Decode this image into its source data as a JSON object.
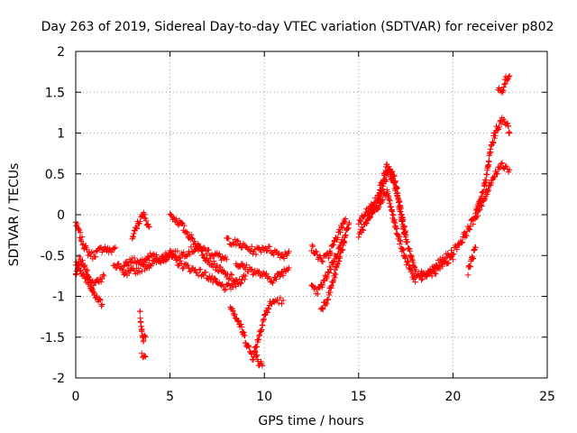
{
  "chart_data": {
    "type": "scatter",
    "title": "Day 263 of 2019, Sidereal Day-to-day VTEC variation (SDTVAR) for receiver p802",
    "xlabel": "GPS time / hours",
    "ylabel": "SDTVAR / TECUs",
    "xlim": [
      0,
      25
    ],
    "ylim": [
      -2,
      2
    ],
    "x_ticks": [
      0,
      5,
      10,
      15,
      20,
      25
    ],
    "y_ticks": [
      -2,
      -1.5,
      -1,
      -0.5,
      0,
      0.5,
      1,
      1.5,
      2
    ],
    "grid": true,
    "marker": "+",
    "colors": {
      "series": "#ff0000",
      "grid": "#a0a0a0",
      "axes": "#000000"
    },
    "series": [
      {
        "name": "SDTVAR",
        "segments": [
          {
            "x": [
              0.0,
              0.3,
              0.6,
              0.9,
              1.2,
              1.5,
              1.8,
              2.1
            ],
            "y": [
              -0.1,
              -0.3,
              -0.45,
              -0.5,
              -0.45,
              -0.4,
              -0.45,
              -0.4
            ]
          },
          {
            "x": [
              0.0,
              0.3,
              0.6,
              0.9,
              1.2,
              1.5
            ],
            "y": [
              -0.6,
              -0.7,
              -0.8,
              -0.85,
              -0.8,
              -0.75
            ]
          },
          {
            "x": [
              0.0,
              0.2,
              0.4,
              0.6,
              0.8,
              1.0,
              1.2,
              1.4
            ],
            "y": [
              -0.75,
              -0.55,
              -0.6,
              -0.7,
              -0.9,
              -1.0,
              -1.05,
              -1.1
            ]
          },
          {
            "x": [
              2.0,
              2.5,
              3.0,
              3.5,
              4.0,
              4.5,
              5.0,
              5.5,
              6.0,
              6.5,
              7.0,
              7.5,
              8.0
            ],
            "y": [
              -0.6,
              -0.65,
              -0.55,
              -0.6,
              -0.5,
              -0.55,
              -0.45,
              -0.5,
              -0.45,
              -0.4,
              -0.45,
              -0.5,
              -0.55
            ]
          },
          {
            "x": [
              2.5,
              3.0,
              3.5,
              4.0,
              4.5,
              5.0,
              5.5,
              6.0,
              6.5,
              7.0,
              7.5,
              8.0,
              8.5,
              9.0
            ],
            "y": [
              -0.75,
              -0.7,
              -0.65,
              -0.6,
              -0.55,
              -0.5,
              -0.6,
              -0.65,
              -0.7,
              -0.75,
              -0.85,
              -0.9,
              -0.85,
              -0.75
            ]
          },
          {
            "x": [
              5.0,
              5.5,
              6.0,
              6.5,
              7.0,
              7.5,
              8.0,
              8.5
            ],
            "y": [
              0.0,
              -0.1,
              -0.25,
              -0.4,
              -0.55,
              -0.65,
              -0.75,
              -0.8
            ]
          },
          {
            "x": [
              3.0,
              3.3,
              3.6,
              3.9
            ],
            "y": [
              -0.3,
              -0.1,
              0.0,
              -0.15
            ]
          },
          {
            "x": [
              3.4,
              3.5,
              3.6,
              3.7
            ],
            "y": [
              -1.2,
              -1.4,
              -1.55,
              -1.5
            ]
          },
          {
            "x": [
              3.5,
              3.6,
              3.7
            ],
            "y": [
              -1.72,
              -1.75,
              -1.74
            ]
          },
          {
            "x": [
              8.0,
              8.5,
              9.0,
              9.5,
              10.0,
              10.5,
              11.0,
              11.3
            ],
            "y": [
              -0.3,
              -0.35,
              -0.4,
              -0.45,
              -0.4,
              -0.45,
              -0.5,
              -0.45
            ]
          },
          {
            "x": [
              8.5,
              9.0,
              9.5,
              10.0,
              10.5,
              11.0,
              11.3
            ],
            "y": [
              -0.6,
              -0.65,
              -0.7,
              -0.75,
              -0.8,
              -0.7,
              -0.65
            ]
          },
          {
            "x": [
              8.2,
              8.5,
              8.8,
              9.1,
              9.4,
              9.7,
              10.0,
              10.3,
              10.6,
              11.0
            ],
            "y": [
              -1.1,
              -1.25,
              -1.4,
              -1.6,
              -1.75,
              -1.5,
              -1.25,
              -1.1,
              -1.05,
              -1.05
            ]
          },
          {
            "x": [
              9.5,
              9.7,
              9.9
            ],
            "y": [
              -1.7,
              -1.8,
              -1.85
            ]
          },
          {
            "x": [
              12.5,
              12.8,
              13.1,
              13.4,
              13.7,
              14.0,
              14.3
            ],
            "y": [
              -0.9,
              -0.95,
              -0.85,
              -0.7,
              -0.55,
              -0.4,
              -0.25
            ]
          },
          {
            "x": [
              12.5,
              12.8,
              13.1,
              13.4,
              13.7,
              14.0,
              14.3
            ],
            "y": [
              -0.4,
              -0.5,
              -0.55,
              -0.5,
              -0.35,
              -0.2,
              -0.05
            ]
          },
          {
            "x": [
              13.0,
              13.3,
              13.6,
              13.9,
              14.2,
              14.5
            ],
            "y": [
              -1.15,
              -1.05,
              -0.85,
              -0.6,
              -0.35,
              -0.1
            ]
          },
          {
            "x": [
              15.0,
              15.5,
              16.0,
              16.5,
              17.0,
              17.5,
              18.0,
              18.5,
              19.0,
              19.5,
              20.0,
              20.5,
              21.0,
              21.5,
              22.0,
              22.5,
              23.0
            ],
            "y": [
              -0.1,
              0.05,
              0.2,
              0.6,
              0.3,
              -0.3,
              -0.7,
              -0.75,
              -0.65,
              -0.55,
              -0.45,
              -0.3,
              -0.1,
              0.1,
              0.4,
              0.6,
              0.55
            ]
          },
          {
            "x": [
              15.0,
              15.5,
              16.0,
              16.5,
              17.0,
              17.5,
              18.0,
              18.5,
              19.0,
              19.5,
              20.0
            ],
            "y": [
              -0.25,
              -0.05,
              0.1,
              0.3,
              -0.2,
              -0.55,
              -0.8,
              -0.75,
              -0.7,
              -0.6,
              -0.55
            ]
          },
          {
            "x": [
              15.5,
              16.0,
              16.3,
              16.6,
              16.9,
              17.2,
              17.5
            ],
            "y": [
              0.0,
              0.15,
              0.35,
              0.55,
              0.45,
              0.1,
              -0.25
            ]
          },
          {
            "x": [
              20.8,
              21.0,
              21.2
            ],
            "y": [
              -0.7,
              -0.55,
              -0.4
            ]
          },
          {
            "x": [
              21.2,
              21.5,
              21.8,
              22.0,
              22.3,
              22.6,
              22.9,
              23.0
            ],
            "y": [
              0.0,
              0.2,
              0.5,
              0.8,
              1.05,
              1.15,
              1.1,
              1.0
            ]
          },
          {
            "x": [
              22.4,
              22.6,
              22.8,
              23.0
            ],
            "y": [
              1.55,
              1.5,
              1.65,
              1.7
            ]
          }
        ]
      }
    ]
  }
}
